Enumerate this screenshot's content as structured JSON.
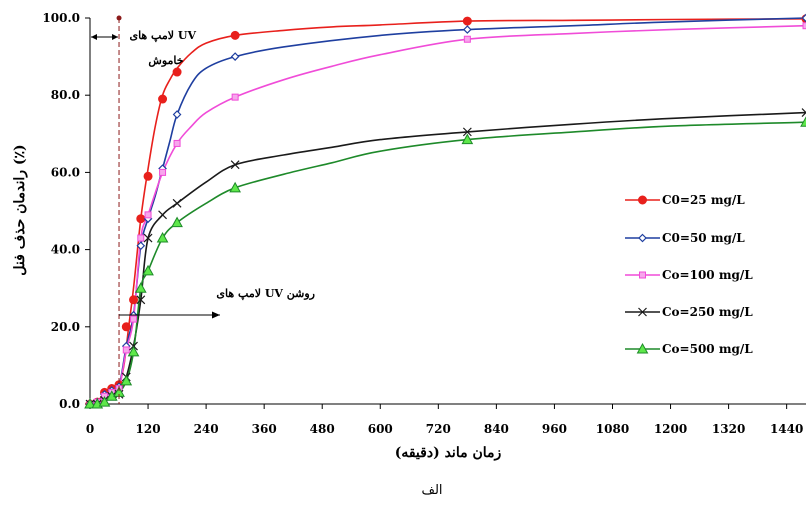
{
  "chart_data": {
    "type": "line",
    "xlabel": "زمان ماند (دقیقه)",
    "ylabel": "راندمان حذف فنل (٪)",
    "caption": "الف",
    "xlim": [
      0,
      1480
    ],
    "ylim": [
      0,
      100
    ],
    "x_ticks": [
      0,
      120,
      240,
      360,
      480,
      600,
      720,
      840,
      960,
      1080,
      1200,
      1320,
      1440
    ],
    "y_ticks": [
      0,
      20,
      40,
      60,
      80,
      100
    ],
    "y_tick_labels": [
      "0.0",
      "20.0",
      "40.0",
      "60.0",
      "80.0",
      "100.0"
    ],
    "grid": false,
    "legend_position": "right",
    "annotations": {
      "uv_off_label": "لامپ های UV",
      "uv_off_label2": "خاموش",
      "uv_on_label": "لامپ های UV روشن",
      "uv_line_x": 60
    },
    "series": [
      {
        "name": "C0=25 mg/L",
        "color": "#e8201c",
        "marker": "circle",
        "marker_x": [
          0,
          15,
          30,
          45,
          60,
          75,
          90,
          105,
          120,
          150,
          180,
          300,
          780,
          1480
        ],
        "marker_y": [
          0,
          0.5,
          3,
          4,
          5,
          20,
          27,
          48,
          59,
          79,
          86,
          95.5,
          99.2,
          99.8
        ],
        "curve_x": [
          0,
          15,
          30,
          45,
          60,
          70,
          80,
          90,
          105,
          120,
          135,
          150,
          165,
          180,
          210,
          240,
          300,
          400,
          500,
          600,
          780,
          1000,
          1200,
          1480
        ],
        "curve_y": [
          0,
          0.5,
          3,
          4,
          5,
          10,
          20,
          30,
          48,
          61,
          72,
          80,
          84,
          87,
          91,
          93.5,
          95.5,
          96.8,
          97.7,
          98.2,
          99.2,
          99.4,
          99.6,
          99.8
        ]
      },
      {
        "name": "C0=50 mg/L",
        "color": "#1f3fa0",
        "marker": "diamond",
        "marker_x": [
          0,
          15,
          30,
          45,
          60,
          75,
          90,
          105,
          120,
          150,
          180,
          300,
          780,
          1480
        ],
        "marker_y": [
          0,
          0.5,
          2.5,
          3.5,
          4.5,
          15,
          23,
          41,
          48,
          61,
          75,
          90,
          97,
          100
        ],
        "curve_x": [
          0,
          15,
          30,
          45,
          60,
          75,
          90,
          105,
          120,
          135,
          150,
          165,
          180,
          210,
          240,
          300,
          400,
          600,
          780,
          1000,
          1200,
          1480
        ],
        "curve_y": [
          0,
          0.5,
          2.5,
          3.5,
          4.5,
          15,
          23,
          41,
          48,
          54,
          61,
          68,
          75,
          83,
          87,
          90,
          92.5,
          95.5,
          97,
          98,
          99,
          100
        ]
      },
      {
        "name": "Co=100 mg/L",
        "color": "#f04cd8",
        "marker": "square",
        "marker_x": [
          0,
          15,
          30,
          45,
          60,
          75,
          90,
          105,
          120,
          150,
          180,
          300,
          780,
          1480
        ],
        "marker_y": [
          0,
          0.5,
          2,
          3,
          4,
          14,
          22,
          43,
          49,
          60,
          67.5,
          79.5,
          94.5,
          98
        ],
        "curve_x": [
          0,
          15,
          30,
          45,
          60,
          75,
          90,
          105,
          120,
          150,
          180,
          210,
          240,
          300,
          400,
          500,
          600,
          780,
          1000,
          1200,
          1480
        ],
        "curve_y": [
          0,
          0.5,
          2,
          3,
          4,
          14,
          22,
          43,
          49,
          60,
          67.5,
          72,
          75.5,
          79.5,
          84,
          87.5,
          90.5,
          94.5,
          96,
          97,
          98
        ]
      },
      {
        "name": "Co=250 mg/L",
        "color": "#1a1a1a",
        "marker": "x",
        "marker_x": [
          0,
          15,
          30,
          45,
          60,
          75,
          90,
          105,
          120,
          150,
          180,
          300,
          780,
          1480
        ],
        "marker_y": [
          0,
          0,
          1,
          2,
          2.5,
          7,
          15,
          27,
          43,
          49,
          52,
          62,
          70.5,
          75.5
        ],
        "curve_x": [
          0,
          15,
          30,
          45,
          60,
          75,
          90,
          105,
          120,
          150,
          180,
          240,
          300,
          400,
          500,
          600,
          780,
          1000,
          1200,
          1480
        ],
        "curve_y": [
          0,
          0,
          1,
          2,
          2.5,
          7,
          15,
          27,
          43,
          49,
          52,
          57.5,
          62,
          64.5,
          66.5,
          68.5,
          70.5,
          72.5,
          74,
          75.5
        ]
      },
      {
        "name": "Co=500 mg/L",
        "color": "#1e8a2a",
        "marker": "triangle",
        "marker_x": [
          0,
          15,
          30,
          45,
          60,
          75,
          90,
          105,
          120,
          150,
          180,
          300,
          780,
          1480
        ],
        "marker_y": [
          0,
          0,
          0.5,
          2,
          3,
          6,
          13.5,
          30,
          34.5,
          43,
          47,
          56,
          68.5,
          73
        ],
        "curve_x": [
          0,
          15,
          30,
          45,
          60,
          75,
          90,
          105,
          120,
          150,
          180,
          240,
          300,
          400,
          500,
          600,
          780,
          1000,
          1200,
          1480
        ],
        "curve_y": [
          0,
          0,
          0.5,
          2,
          3,
          6,
          13.5,
          30,
          34.5,
          43,
          47,
          52,
          56,
          59.5,
          62.5,
          65.5,
          68.5,
          70.5,
          72,
          73
        ]
      }
    ]
  }
}
